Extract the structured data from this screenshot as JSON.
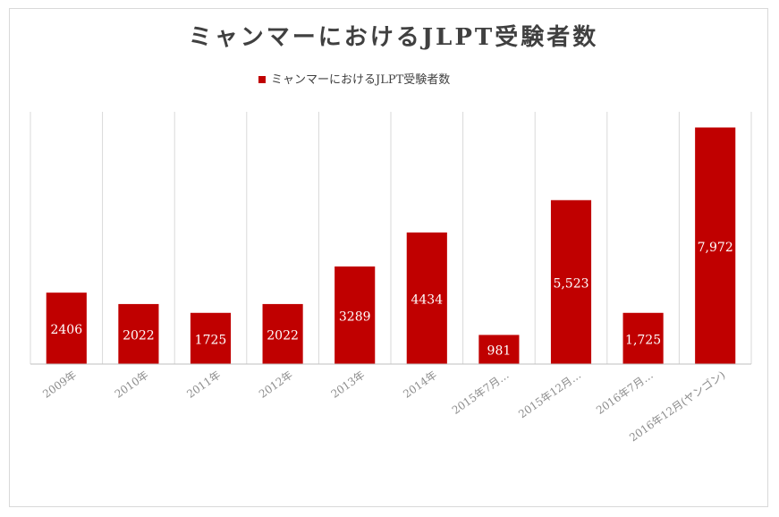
{
  "chart_data": {
    "type": "bar",
    "title": "ミャンマーにおけるJLPT受験者数",
    "legend": {
      "position": "top",
      "label": "ミャンマーにおけるJLPT受験者数"
    },
    "xlabel": "",
    "ylabel": "",
    "grid": {
      "vertical": true,
      "horizontal": false
    },
    "categories": [
      "2009年",
      "2010年",
      "2011年",
      "2012年",
      "2013年",
      "2014年",
      "2015年7月…",
      "2015年12月…",
      "2016年7月…",
      "2016年12月(ヤンゴン)"
    ],
    "series": [
      {
        "name": "ミャンマーにおけるJLPT受験者数",
        "values": [
          2406,
          2022,
          1725,
          2022,
          3289,
          4434,
          981,
          5523,
          1725,
          7972
        ],
        "data_labels": [
          "2406",
          "2022",
          "1725",
          "2022",
          "3289",
          "4434",
          "981",
          "5,523",
          "1,725",
          "7,972"
        ]
      }
    ],
    "colors": {
      "bar": "#c00000",
      "grid": "#d9d9d9",
      "axis": "#bfbfbf",
      "title": "#404040",
      "tick": "#8c8c8c",
      "data_label": "#ffffff"
    }
  }
}
